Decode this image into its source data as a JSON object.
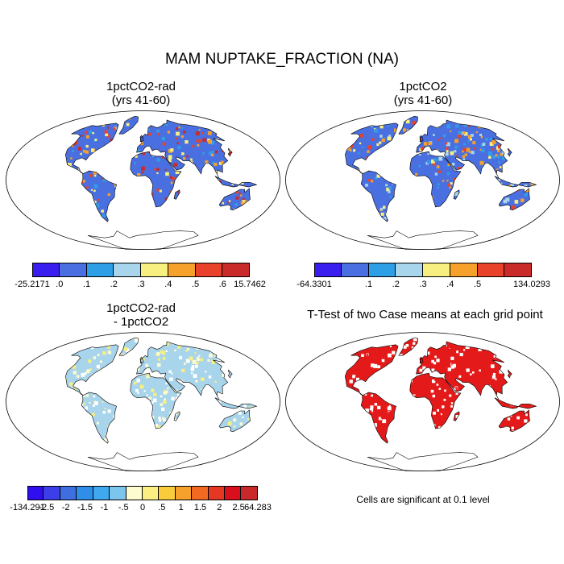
{
  "title": "MAM NUPTAKE_FRACTION (NA)",
  "panels": [
    {
      "id": "p1",
      "title_line1": "1pctCO2-rad",
      "title_line2": "(yrs 41-60)",
      "fill": "#4a6fe0",
      "accent": [
        "#2e9ee6",
        "#f7ef80",
        "#f6a12c",
        "#e8422a",
        "#c92a2a"
      ]
    },
    {
      "id": "p2",
      "title_line1": "1pctCO2",
      "title_line2": "(yrs 41-60)",
      "fill": "#4a6fe0",
      "accent": [
        "#2e9ee6",
        "#a8d4ec",
        "#f7ef80",
        "#f6a12c",
        "#e8422a"
      ]
    },
    {
      "id": "p3",
      "title_line1": "1pctCO2-rad",
      "title_line2": "- 1pctCO2",
      "fill": "#a8d4ec",
      "accent": [
        "#fdfbd0",
        "#f7ef80",
        "#ffffff"
      ]
    },
    {
      "id": "p4",
      "title_line1": "T-Test of two Case means at each grid point",
      "title_line2": "",
      "fill": "#e41a1a",
      "accent": [
        "#ffffff",
        "#e41a1a"
      ]
    }
  ],
  "colorbars": [
    {
      "id": "cb1",
      "colors": [
        "#3a1ef0",
        "#4a6fe0",
        "#2e9ee6",
        "#a8d4ec",
        "#f7ef80",
        "#f6a12c",
        "#e8422a",
        "#c92a2a"
      ],
      "labels": [
        "-25.2171",
        ".0",
        ".1",
        ".2",
        ".3",
        ".4",
        ".5",
        ".6",
        "15.7462"
      ]
    },
    {
      "id": "cb2",
      "colors": [
        "#3a1ef0",
        "#4a6fe0",
        "#2e9ee6",
        "#a8d4ec",
        "#f7ef80",
        "#f6a12c",
        "#e8422a",
        "#c92a2a"
      ],
      "labels": [
        "-64.3301",
        "",
        ".1",
        ".2",
        ".3",
        ".4",
        ".5",
        "",
        "134.0293"
      ]
    },
    {
      "id": "cb3",
      "colors": [
        "#2f0ff0",
        "#3c3fe8",
        "#3f6ee0",
        "#2f8fe8",
        "#3fa8ef",
        "#7cc6ee",
        "#fdfbd0",
        "#fbef84",
        "#f8cc3a",
        "#f6a12c",
        "#f26a22",
        "#e63624",
        "#d90f1e",
        "#c8282a"
      ],
      "labels": [
        "-134.291",
        "-2.5",
        "-2",
        "-1.5",
        "-1",
        "-.5",
        "0",
        ".5",
        "1",
        "1.5",
        "2",
        "2.5",
        "64.283"
      ]
    }
  ],
  "significance_note": "Cells are significant at 0.1 level"
}
